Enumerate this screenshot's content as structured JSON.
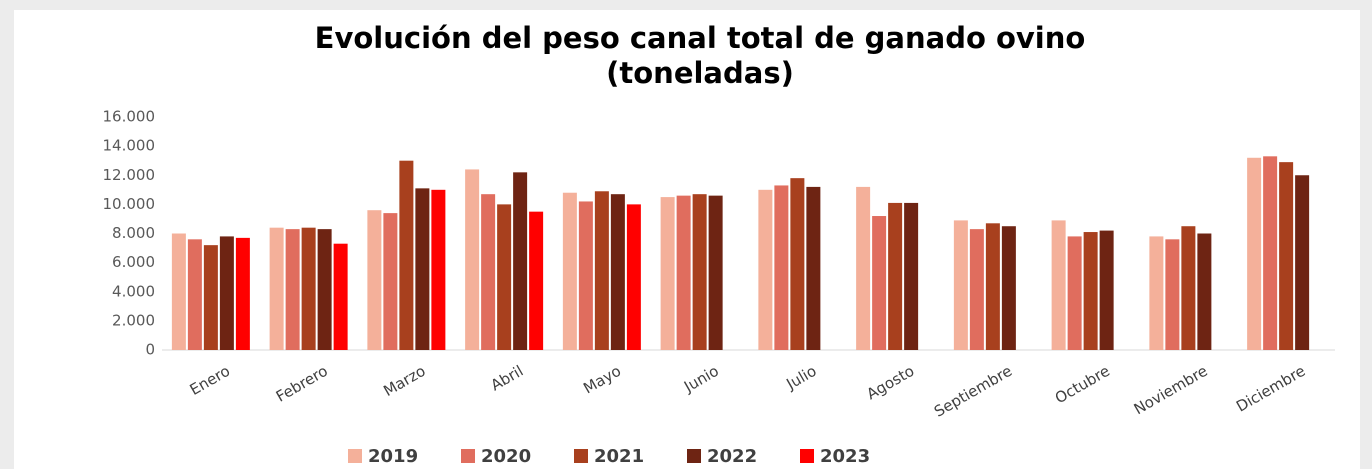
{
  "chart_data": {
    "type": "bar",
    "title": "Evolución del peso canal total de ganado ovino",
    "subtitle": "(toneladas)",
    "categories": [
      "Enero",
      "Febrero",
      "Marzo",
      "Abril",
      "Mayo",
      "Junio",
      "Julio",
      "Agosto",
      "Septiembre",
      "Octubre",
      "Noviembre",
      "Diciembre"
    ],
    "series": [
      {
        "name": "2019",
        "color": "#f4b09a",
        "values": [
          8000,
          8400,
          9600,
          12400,
          10800,
          10500,
          11000,
          11200,
          8900,
          8900,
          7800,
          13200
        ]
      },
      {
        "name": "2020",
        "color": "#e06d5e",
        "values": [
          7600,
          8300,
          9400,
          10700,
          10200,
          10600,
          11300,
          9200,
          8300,
          7800,
          7600,
          13300
        ]
      },
      {
        "name": "2021",
        "color": "#a8401e",
        "values": [
          7200,
          8400,
          13000,
          10000,
          10900,
          10700,
          11800,
          10100,
          8700,
          8100,
          8500,
          12900
        ]
      },
      {
        "name": "2022",
        "color": "#6e2413",
        "values": [
          7800,
          8300,
          11100,
          12200,
          10700,
          10600,
          11200,
          10100,
          8500,
          8200,
          8000,
          12000
        ]
      },
      {
        "name": "2023",
        "color": "#ff0000",
        "values": [
          7700,
          7300,
          11000,
          9500,
          10000,
          null,
          null,
          null,
          null,
          null,
          null,
          null
        ]
      }
    ],
    "ylim": [
      0,
      16000
    ],
    "yticks": [
      0,
      {
        "value": 2000,
        "label": "2.000"
      },
      {
        "value": 4000,
        "label": "4.000"
      },
      {
        "value": 6000,
        "label": "6.000"
      },
      {
        "value": 8000,
        "label": "8.000"
      },
      {
        "value": 10000,
        "label": "10.000"
      },
      {
        "value": 12000,
        "label": "12.000"
      },
      {
        "value": 14000,
        "label": "14.000"
      },
      {
        "value": 16000,
        "label": "16.000"
      }
    ],
    "grid": false,
    "legend": "bottom"
  }
}
